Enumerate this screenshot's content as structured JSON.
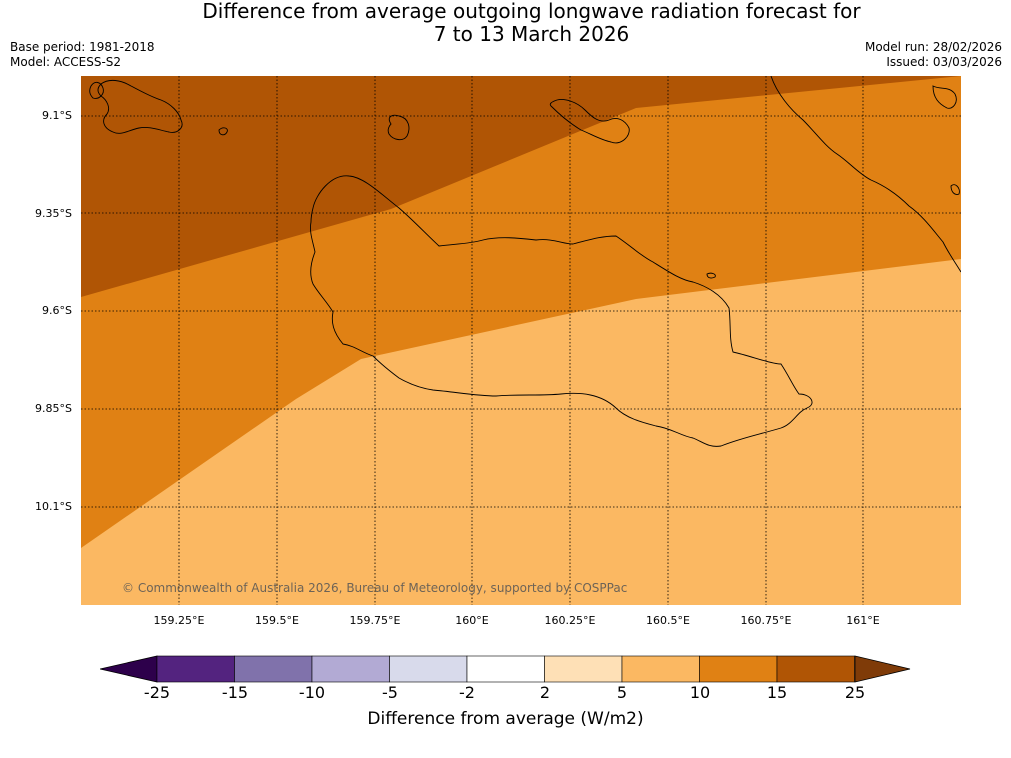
{
  "title": {
    "line1": "Difference from average outgoing longwave radiation forecast for",
    "line2": "7 to 13 March 2026"
  },
  "meta_left": {
    "base_period": "Base period: 1981-2018",
    "model": "Model: ACCESS-S2"
  },
  "meta_right": {
    "model_run": "Model run: 28/02/2026",
    "issued": "Issued: 03/03/2026"
  },
  "map": {
    "lat_labels": [
      "9.1°S",
      "9.35°S",
      "9.6°S",
      "9.85°S",
      "10.1°S"
    ],
    "lon_labels": [
      "159.25°E",
      "159.5°E",
      "159.75°E",
      "160°E",
      "160.25°E",
      "160.5°E",
      "160.75°E",
      "161°E"
    ],
    "copyright": "© Commonwealth of Australia 2026, Bureau of Meteorology, supported by COSPPac",
    "zone_colors": {
      "dark": "#b05505",
      "mid": "#e08114",
      "light": "#fbb862"
    }
  },
  "colorbar": {
    "label": "Difference from average (W/m2)",
    "ticks": [
      "-25",
      "-15",
      "-10",
      "-5",
      "-2",
      "2",
      "5",
      "10",
      "15",
      "25"
    ],
    "colors": [
      "#53237f",
      "#8072ab",
      "#b2aad4",
      "#d8daeb",
      "#ffffff",
      "#fee0b6",
      "#fbb862",
      "#e08114",
      "#b05505"
    ],
    "extend_low_color": "#2d004b",
    "extend_high_color": "#7f3b08"
  }
}
